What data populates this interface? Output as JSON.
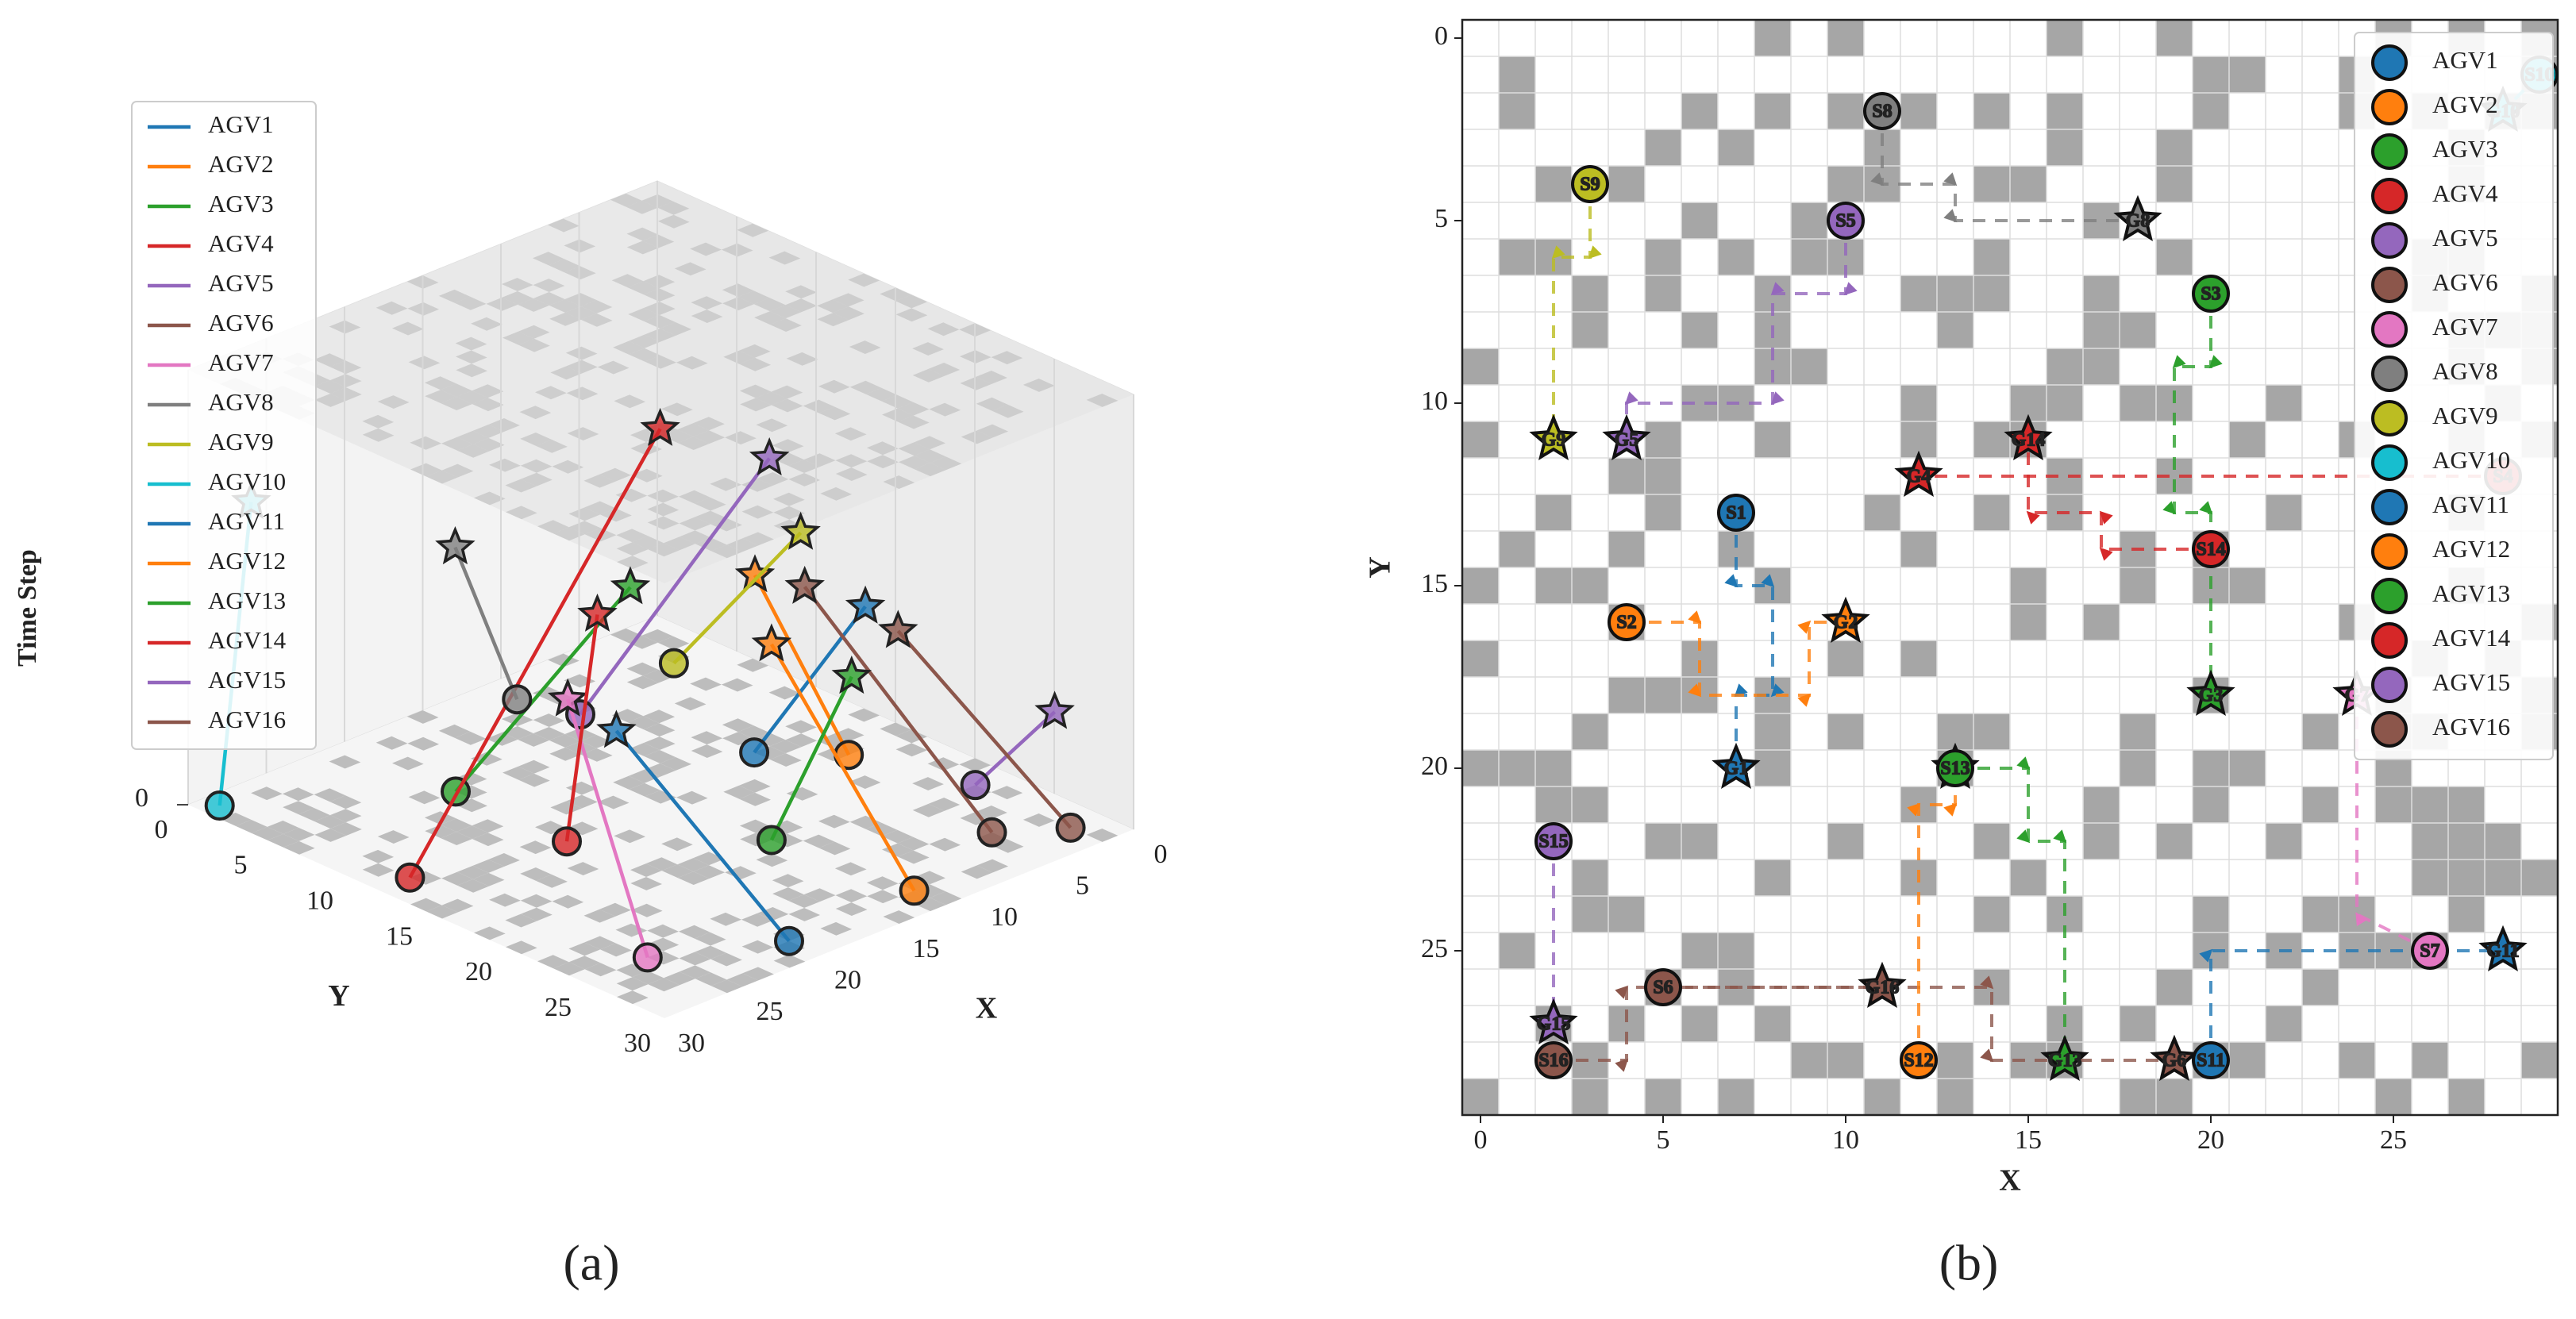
{
  "chart_data": [
    {
      "type": "trajectory3d",
      "caption": "(a)",
      "xlabel": "X",
      "ylabel": "Y",
      "zlabel": "Time Step",
      "xlim": [
        0,
        30
      ],
      "ylim": [
        0,
        30
      ],
      "zlim": [
        0,
        20
      ],
      "xticks": [
        0,
        5,
        10,
        15,
        20,
        25,
        30
      ],
      "yticks": [
        0,
        5,
        10,
        15,
        20,
        25,
        30
      ],
      "zticks": [
        0
      ],
      "legend": "upper left",
      "series": [
        {
          "name": "AGV1",
          "color": "#1f77b4",
          "x": [
            7,
            7
          ],
          "y": [
            13,
            20
          ],
          "t": [
            0,
            9
          ]
        },
        {
          "name": "AGV2",
          "color": "#ff7f0e",
          "x": [
            4,
            10
          ],
          "y": [
            16,
            16
          ],
          "t": [
            0,
            10
          ]
        },
        {
          "name": "AGV3",
          "color": "#2ca02c",
          "x": [
            20,
            20
          ],
          "y": [
            7,
            18
          ],
          "t": [
            0,
            13
          ]
        },
        {
          "name": "AGV4",
          "color": "#d62728",
          "x": [
            28,
            12
          ],
          "y": [
            12,
            12
          ],
          "t": [
            0,
            16
          ]
        },
        {
          "name": "AGV5",
          "color": "#9467bd",
          "x": [
            10,
            4
          ],
          "y": [
            5,
            11
          ],
          "t": [
            0,
            12
          ]
        },
        {
          "name": "AGV6",
          "color": "#8c564b",
          "x": [
            5,
            19
          ],
          "y": [
            26,
            28
          ],
          "t": [
            0,
            16
          ]
        },
        {
          "name": "AGV7",
          "color": "#e377c2",
          "x": [
            26,
            24
          ],
          "y": [
            25,
            18
          ],
          "t": [
            0,
            9
          ]
        },
        {
          "name": "AGV8",
          "color": "#7f7f7f",
          "x": [
            11,
            18
          ],
          "y": [
            2,
            5
          ],
          "t": [
            0,
            10
          ]
        },
        {
          "name": "AGV9",
          "color": "#bcbd22",
          "x": [
            3,
            2
          ],
          "y": [
            4,
            11
          ],
          "t": [
            0,
            8
          ]
        },
        {
          "name": "AGV10",
          "color": "#17becf",
          "x": [
            29,
            28
          ],
          "y": [
            1,
            2
          ],
          "t": [
            0,
            14
          ]
        },
        {
          "name": "AGV11",
          "color": "#1f77b4",
          "x": [
            20,
            28
          ],
          "y": [
            28,
            25
          ],
          "t": [
            0,
            11
          ]
        },
        {
          "name": "AGV12",
          "color": "#ff7f0e",
          "x": [
            12,
            13
          ],
          "y": [
            28,
            20
          ],
          "t": [
            0,
            9
          ]
        },
        {
          "name": "AGV13",
          "color": "#2ca02c",
          "x": [
            13,
            16
          ],
          "y": [
            20,
            28
          ],
          "t": [
            0,
            11
          ]
        },
        {
          "name": "AGV14",
          "color": "#d62728",
          "x": [
            20,
            15
          ],
          "y": [
            14,
            11
          ],
          "t": [
            0,
            8
          ]
        },
        {
          "name": "AGV15",
          "color": "#9467bd",
          "x": [
            2,
            2
          ],
          "y": [
            22,
            27
          ],
          "t": [
            0,
            5
          ]
        },
        {
          "name": "AGV16",
          "color": "#8c564b",
          "x": [
            2,
            11
          ],
          "y": [
            28,
            26
          ],
          "t": [
            0,
            11
          ]
        }
      ]
    },
    {
      "type": "gridpaths",
      "caption": "(b)",
      "xlabel": "X",
      "ylabel": "Y",
      "xlim": [
        -0.5,
        29.5
      ],
      "ylim": [
        29.5,
        -0.5
      ],
      "xticks": [
        0,
        5,
        10,
        15,
        20,
        25
      ],
      "yticks": [
        0,
        5,
        10,
        15,
        20,
        25
      ],
      "legend": "upper right",
      "series": [
        {
          "name": "AGV1",
          "color": "#1f77b4",
          "start_label": "S1",
          "goal_label": "G1",
          "x": [
            7,
            7,
            8,
            8,
            7,
            7
          ],
          "y": [
            13,
            15,
            15,
            18,
            18,
            20
          ]
        },
        {
          "name": "AGV2",
          "color": "#ff7f0e",
          "start_label": "S2",
          "goal_label": "G2",
          "x": [
            4,
            6,
            6,
            9,
            9,
            10
          ],
          "y": [
            16,
            16,
            18,
            18,
            16,
            16
          ]
        },
        {
          "name": "AGV3",
          "color": "#2ca02c",
          "start_label": "S3",
          "goal_label": "G3",
          "x": [
            20,
            20,
            19,
            19,
            20,
            20
          ],
          "y": [
            7,
            9,
            9,
            13,
            13,
            18
          ]
        },
        {
          "name": "AGV4",
          "color": "#d62728",
          "start_label": "S4",
          "goal_label": "G4",
          "x": [
            28,
            12
          ],
          "y": [
            12,
            12
          ]
        },
        {
          "name": "AGV5",
          "color": "#9467bd",
          "start_label": "S5",
          "goal_label": "G5",
          "x": [
            10,
            10,
            8,
            8,
            4,
            4
          ],
          "y": [
            5,
            7,
            7,
            10,
            10,
            11
          ]
        },
        {
          "name": "AGV6",
          "color": "#8c564b",
          "start_label": "S6",
          "goal_label": "G6",
          "x": [
            5,
            14,
            14,
            19
          ],
          "y": [
            26,
            26,
            28,
            28
          ]
        },
        {
          "name": "AGV7",
          "color": "#e377c2",
          "start_label": "S7",
          "goal_label": "G7",
          "x": [
            26,
            24,
            24
          ],
          "y": [
            25,
            24,
            18
          ]
        },
        {
          "name": "AGV8",
          "color": "#7f7f7f",
          "start_label": "S8",
          "goal_label": "G8",
          "x": [
            11,
            11,
            13,
            13,
            18
          ],
          "y": [
            2,
            4,
            4,
            5,
            5
          ]
        },
        {
          "name": "AGV9",
          "color": "#bcbd22",
          "start_label": "S9",
          "goal_label": "G9",
          "x": [
            3,
            3,
            2,
            2
          ],
          "y": [
            4,
            6,
            6,
            11
          ]
        },
        {
          "name": "AGV10",
          "color": "#17becf",
          "start_label": "S10",
          "goal_label": "G10",
          "x": [
            29,
            28
          ],
          "y": [
            1,
            2
          ]
        },
        {
          "name": "AGV11",
          "color": "#1f77b4",
          "start_label": "S11",
          "goal_label": "G11",
          "x": [
            20,
            20,
            28
          ],
          "y": [
            28,
            25,
            25
          ]
        },
        {
          "name": "AGV12",
          "color": "#ff7f0e",
          "start_label": "S12",
          "goal_label": "G12",
          "x": [
            12,
            12,
            13,
            13
          ],
          "y": [
            28,
            21,
            21,
            20
          ]
        },
        {
          "name": "AGV13",
          "color": "#2ca02c",
          "start_label": "S13",
          "goal_label": "G13",
          "x": [
            13,
            15,
            15,
            16,
            16
          ],
          "y": [
            20,
            20,
            22,
            22,
            28
          ]
        },
        {
          "name": "AGV14",
          "color": "#d62728",
          "start_label": "S14",
          "goal_label": "G14",
          "x": [
            20,
            17,
            17,
            15,
            15
          ],
          "y": [
            14,
            14,
            13,
            13,
            11
          ]
        },
        {
          "name": "AGV15",
          "color": "#9467bd",
          "start_label": "S15",
          "goal_label": "G15",
          "x": [
            2,
            2
          ],
          "y": [
            22,
            27
          ]
        },
        {
          "name": "AGV16",
          "color": "#8c564b",
          "start_label": "S16",
          "goal_label": "G16",
          "x": [
            2,
            4,
            4,
            11
          ],
          "y": [
            28,
            28,
            26,
            26
          ]
        }
      ]
    }
  ]
}
